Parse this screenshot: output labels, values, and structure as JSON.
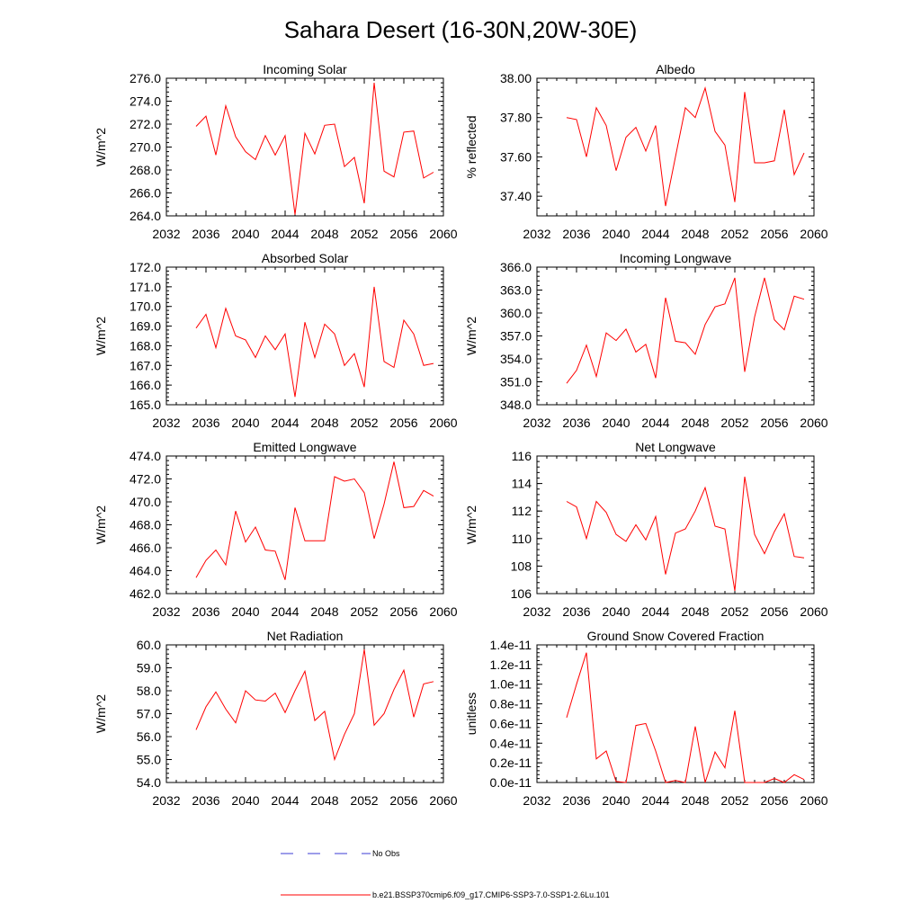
{
  "figure_title": "Sahara Desert (16-30N,20W-30E)",
  "colors": {
    "model_line": "#ff0000",
    "obs_line": "#3b3bd6",
    "axis": "#000000"
  },
  "legend": {
    "obs_label": "No Obs",
    "model_label": "b.e21.BSSP370cmip6.f09_g17.CMIP6-SSP3-7.0-SSP1-2.6Lu.101"
  },
  "chart_data": [
    {
      "type": "line",
      "title": "Incoming Solar",
      "xlabel": "",
      "ylabel": "W/m^2",
      "xlim": [
        2032,
        2060
      ],
      "ylim": [
        264,
        276
      ],
      "x_ticks": [
        2032,
        2036,
        2040,
        2044,
        2048,
        2052,
        2056,
        2060
      ],
      "y_ticks": [
        "264.0",
        "266.0",
        "268.0",
        "270.0",
        "272.0",
        "274.0",
        "276.0"
      ],
      "y_tick_values": [
        264,
        266,
        268,
        270,
        272,
        274,
        276
      ],
      "x": [
        2035,
        2036,
        2037,
        2038,
        2039,
        2040,
        2041,
        2042,
        2043,
        2044,
        2045,
        2046,
        2047,
        2048,
        2049,
        2050,
        2051,
        2052,
        2053,
        2054,
        2055,
        2056,
        2057,
        2058,
        2059
      ],
      "series": [
        {
          "values": [
            271.8,
            272.7,
            269.3,
            273.6,
            270.9,
            269.6,
            268.9,
            271.0,
            269.3,
            271.0,
            264.1,
            271.2,
            269.4,
            271.9,
            272.0,
            268.3,
            269.1,
            265.1,
            275.6,
            267.9,
            267.4,
            271.3,
            271.4,
            267.3,
            267.8
          ]
        }
      ]
    },
    {
      "type": "line",
      "title": "Albedo",
      "xlabel": "",
      "ylabel": "% reflected",
      "xlim": [
        2032,
        2060
      ],
      "ylim": [
        37.3,
        38.0
      ],
      "x_ticks": [
        2032,
        2036,
        2040,
        2044,
        2048,
        2052,
        2056,
        2060
      ],
      "y_ticks": [
        "37.40",
        "37.60",
        "37.80",
        "38.00"
      ],
      "y_tick_values": [
        37.4,
        37.6,
        37.8,
        38.0
      ],
      "x": [
        2035,
        2036,
        2037,
        2038,
        2039,
        2040,
        2041,
        2042,
        2043,
        2044,
        2045,
        2046,
        2047,
        2048,
        2049,
        2050,
        2051,
        2052,
        2053,
        2054,
        2055,
        2056,
        2057,
        2058,
        2059
      ],
      "series": [
        {
          "values": [
            37.8,
            37.79,
            37.6,
            37.85,
            37.76,
            37.53,
            37.7,
            37.75,
            37.63,
            37.76,
            37.35,
            37.6,
            37.85,
            37.8,
            37.95,
            37.73,
            37.66,
            37.37,
            37.93,
            37.57,
            37.57,
            37.58,
            37.84,
            37.51,
            37.62
          ]
        }
      ]
    },
    {
      "type": "line",
      "title": "Absorbed Solar",
      "xlabel": "",
      "ylabel": "W/m^2",
      "xlim": [
        2032,
        2060
      ],
      "ylim": [
        165,
        172
      ],
      "x_ticks": [
        2032,
        2036,
        2040,
        2044,
        2048,
        2052,
        2056,
        2060
      ],
      "y_ticks": [
        "165.0",
        "166.0",
        "167.0",
        "168.0",
        "169.0",
        "170.0",
        "171.0",
        "172.0"
      ],
      "y_tick_values": [
        165,
        166,
        167,
        168,
        169,
        170,
        171,
        172
      ],
      "x": [
        2035,
        2036,
        2037,
        2038,
        2039,
        2040,
        2041,
        2042,
        2043,
        2044,
        2045,
        2046,
        2047,
        2048,
        2049,
        2050,
        2051,
        2052,
        2053,
        2054,
        2055,
        2056,
        2057,
        2058,
        2059
      ],
      "series": [
        {
          "values": [
            168.9,
            169.6,
            167.9,
            169.9,
            168.5,
            168.3,
            167.4,
            168.5,
            167.8,
            168.6,
            165.4,
            169.2,
            167.4,
            169.1,
            168.6,
            167.0,
            167.6,
            165.9,
            171.0,
            167.2,
            166.9,
            169.3,
            168.6,
            167.0,
            167.1
          ]
        }
      ]
    },
    {
      "type": "line",
      "title": "Incoming Longwave",
      "xlabel": "",
      "ylabel": "W/m^2",
      "xlim": [
        2032,
        2060
      ],
      "ylim": [
        348,
        366
      ],
      "x_ticks": [
        2032,
        2036,
        2040,
        2044,
        2048,
        2052,
        2056,
        2060
      ],
      "y_ticks": [
        "348.0",
        "351.0",
        "354.0",
        "357.0",
        "360.0",
        "363.0",
        "366.0"
      ],
      "y_tick_values": [
        348,
        351,
        354,
        357,
        360,
        363,
        366
      ],
      "x": [
        2035,
        2036,
        2037,
        2038,
        2039,
        2040,
        2041,
        2042,
        2043,
        2044,
        2045,
        2046,
        2047,
        2048,
        2049,
        2050,
        2051,
        2052,
        2053,
        2054,
        2055,
        2056,
        2057,
        2058,
        2059
      ],
      "series": [
        {
          "values": [
            350.8,
            352.5,
            355.8,
            351.7,
            357.4,
            356.4,
            357.9,
            354.9,
            355.9,
            351.5,
            362.0,
            356.3,
            356.1,
            354.6,
            358.5,
            360.8,
            361.2,
            364.6,
            352.3,
            359.5,
            364.6,
            359.1,
            357.8,
            362.2,
            361.8
          ]
        }
      ]
    },
    {
      "type": "line",
      "title": "Emitted Longwave",
      "xlabel": "",
      "ylabel": "W/m^2",
      "xlim": [
        2032,
        2060
      ],
      "ylim": [
        462,
        474
      ],
      "x_ticks": [
        2032,
        2036,
        2040,
        2044,
        2048,
        2052,
        2056,
        2060
      ],
      "y_ticks": [
        "462.0",
        "464.0",
        "466.0",
        "468.0",
        "470.0",
        "472.0",
        "474.0"
      ],
      "y_tick_values": [
        462,
        464,
        466,
        468,
        470,
        472,
        474
      ],
      "x": [
        2035,
        2036,
        2037,
        2038,
        2039,
        2040,
        2041,
        2042,
        2043,
        2044,
        2045,
        2046,
        2047,
        2048,
        2049,
        2050,
        2051,
        2052,
        2053,
        2054,
        2055,
        2056,
        2057,
        2058,
        2059
      ],
      "series": [
        {
          "values": [
            463.4,
            464.9,
            465.8,
            464.5,
            469.2,
            466.5,
            467.8,
            465.8,
            465.7,
            463.2,
            469.5,
            466.6,
            466.6,
            466.6,
            472.2,
            471.8,
            472.0,
            470.8,
            466.8,
            469.8,
            473.5,
            469.5,
            469.6,
            471.0,
            470.5
          ]
        }
      ]
    },
    {
      "type": "line",
      "title": "Net Longwave",
      "xlabel": "",
      "ylabel": "W/m^2",
      "xlim": [
        2032,
        2060
      ],
      "ylim": [
        106,
        116
      ],
      "x_ticks": [
        2032,
        2036,
        2040,
        2044,
        2048,
        2052,
        2056,
        2060
      ],
      "y_ticks": [
        "106",
        "108",
        "110",
        "112",
        "114",
        "116"
      ],
      "y_tick_values": [
        106,
        108,
        110,
        112,
        114,
        116
      ],
      "x": [
        2035,
        2036,
        2037,
        2038,
        2039,
        2040,
        2041,
        2042,
        2043,
        2044,
        2045,
        2046,
        2047,
        2048,
        2049,
        2050,
        2051,
        2052,
        2053,
        2054,
        2055,
        2056,
        2057,
        2058,
        2059
      ],
      "series": [
        {
          "values": [
            112.7,
            112.3,
            110.0,
            112.7,
            111.9,
            110.3,
            109.8,
            111.0,
            109.9,
            111.6,
            107.4,
            110.4,
            110.7,
            112.0,
            113.7,
            110.9,
            110.7,
            106.2,
            114.5,
            110.3,
            108.9,
            110.5,
            111.8,
            108.7,
            108.6
          ]
        }
      ]
    },
    {
      "type": "line",
      "title": "Net Radiation",
      "xlabel": "",
      "ylabel": "W/m^2",
      "xlim": [
        2032,
        2060
      ],
      "ylim": [
        54,
        60
      ],
      "x_ticks": [
        2032,
        2036,
        2040,
        2044,
        2048,
        2052,
        2056,
        2060
      ],
      "y_ticks": [
        "54.0",
        "55.0",
        "56.0",
        "57.0",
        "58.0",
        "59.0",
        "60.0"
      ],
      "y_tick_values": [
        54,
        55,
        56,
        57,
        58,
        59,
        60
      ],
      "x": [
        2035,
        2036,
        2037,
        2038,
        2039,
        2040,
        2041,
        2042,
        2043,
        2044,
        2045,
        2046,
        2047,
        2048,
        2049,
        2050,
        2051,
        2052,
        2053,
        2054,
        2055,
        2056,
        2057,
        2058,
        2059
      ],
      "series": [
        {
          "values": [
            56.3,
            57.3,
            57.95,
            57.2,
            56.6,
            58.0,
            57.6,
            57.55,
            57.9,
            57.05,
            58.0,
            58.85,
            56.7,
            57.1,
            55.0,
            56.1,
            57.0,
            59.8,
            56.5,
            57.0,
            58.05,
            58.9,
            56.85,
            58.3,
            58.4
          ]
        }
      ]
    },
    {
      "type": "line",
      "title": "Ground Snow Covered Fraction",
      "xlabel": "",
      "ylabel": "unitless",
      "xlim": [
        2032,
        2060
      ],
      "ylim": [
        0,
        1.4e-11
      ],
      "x_ticks": [
        2032,
        2036,
        2040,
        2044,
        2048,
        2052,
        2056,
        2060
      ],
      "y_ticks": [
        "0.0e-11",
        "0.2e-11",
        "0.4e-11",
        "0.6e-11",
        "0.8e-11",
        "1.0e-11",
        "1.2e-11",
        "1.4e-11"
      ],
      "y_tick_values": [
        0,
        2e-12,
        4e-12,
        6e-12,
        8e-12,
        1e-11,
        1.2e-11,
        1.4e-11
      ],
      "x": [
        2035,
        2036,
        2037,
        2038,
        2039,
        2040,
        2041,
        2042,
        2043,
        2044,
        2045,
        2046,
        2047,
        2048,
        2049,
        2050,
        2051,
        2052,
        2053,
        2054,
        2055,
        2056,
        2057,
        2058,
        2059
      ],
      "series": [
        {
          "values": [
            6.6e-12,
            1e-11,
            1.32e-11,
            2.4e-12,
            3.2e-12,
            1e-13,
            0.0,
            5.8e-12,
            6e-12,
            3.2e-12,
            0.0,
            2e-13,
            0.0,
            5.7e-12,
            0.0,
            3.1e-12,
            1.5e-12,
            7.3e-12,
            0.0,
            0.0,
            0.0,
            4e-13,
            0.0,
            8e-13,
            3e-13
          ]
        }
      ]
    }
  ]
}
